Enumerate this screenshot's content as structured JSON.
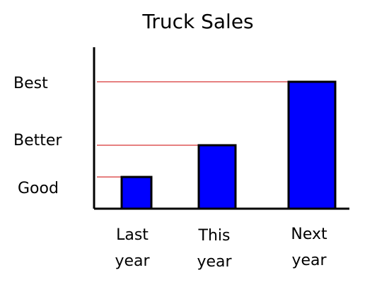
{
  "chart_data": {
    "type": "bar",
    "title": "Truck Sales",
    "categories": [
      [
        "Last",
        "year"
      ],
      [
        "This",
        "year"
      ],
      [
        "Next",
        "year"
      ]
    ],
    "values": [
      1,
      2,
      4
    ],
    "y_levels": [
      {
        "label": "Good",
        "value": 1
      },
      {
        "label": "Better",
        "value": 2
      },
      {
        "label": "Best",
        "value": 4
      }
    ],
    "ylim": [
      0,
      4.4
    ],
    "xlabel": "",
    "ylabel": "",
    "grid": false,
    "colors": {
      "bar_fill": "#0000ff",
      "bar_stroke": "#000000",
      "reference_line": "#cc0000",
      "axis": "#000000"
    }
  }
}
